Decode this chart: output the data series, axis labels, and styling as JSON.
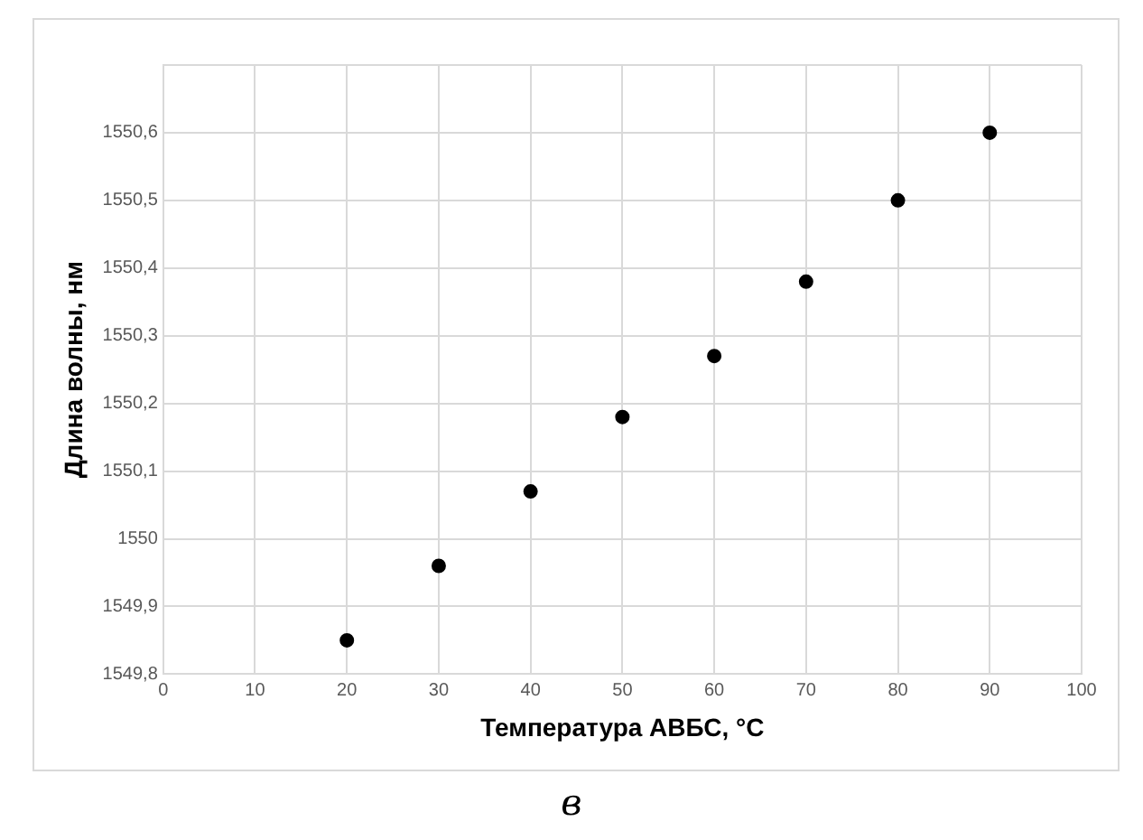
{
  "chart_data": {
    "type": "scatter",
    "xlabel": "Температура АВБС, °C",
    "ylabel": "Длина волны, нм",
    "x": [
      20,
      30,
      40,
      50,
      60,
      70,
      80,
      90
    ],
    "series": [
      {
        "color": "#000000",
        "values": [
          1549.85,
          1549.96,
          1550.07,
          1550.18,
          1550.27,
          1550.38,
          1550.5,
          1550.6
        ]
      }
    ],
    "xlim": [
      0,
      100
    ],
    "xticks": [
      0,
      10,
      20,
      30,
      40,
      50,
      60,
      70,
      80,
      90,
      100
    ],
    "ylim": [
      1549.8,
      1550.7
    ],
    "yticks": [
      {
        "value": 1549.8,
        "label": "1549,8"
      },
      {
        "value": 1549.9,
        "label": "1549,9"
      },
      {
        "value": 1550,
        "label": "1550"
      },
      {
        "value": 1550.1,
        "label": "1550,1"
      },
      {
        "value": 1550.2,
        "label": "1550,2"
      },
      {
        "value": 1550.3,
        "label": "1550,3"
      },
      {
        "value": 1550.4,
        "label": "1550,4"
      },
      {
        "value": 1550.5,
        "label": "1550,5"
      },
      {
        "value": 1550.6,
        "label": "1550,6"
      },
      {
        "value": 1550.7,
        "label": null
      }
    ],
    "grid": true,
    "legend": false,
    "marker": "circle",
    "annotations": [
      "в"
    ]
  }
}
